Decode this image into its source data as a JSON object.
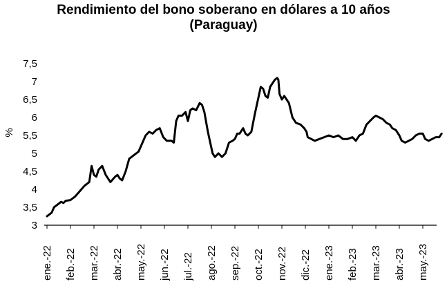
{
  "chart_data": {
    "type": "line",
    "title_line1": "Rendimiento del bono soberano en dólares a 10 años",
    "title_line2": "(Paraguay)",
    "xlabel": "",
    "ylabel": "%",
    "ylim": [
      3,
      7.5
    ],
    "yticks": [
      "3",
      "3,5",
      "4",
      "4,5",
      "5",
      "5,5",
      "6",
      "6,5",
      "7",
      "7,5"
    ],
    "xticks": [
      "ene.-22",
      "feb.-22",
      "mar.-22",
      "abr.-22",
      "may.-22",
      "jun.-22",
      "jul.-22",
      "ago.-22",
      "sep.-22",
      "oct.-22",
      "nov.-22",
      "dic.-22",
      "ene.-23",
      "feb.-23",
      "mar.-23",
      "abr.-23",
      "may.-23"
    ],
    "line_color": "#000000",
    "grid": false,
    "series": [
      {
        "values": [
          [
            0.0,
            3.25
          ],
          [
            0.1,
            3.3
          ],
          [
            0.2,
            3.35
          ],
          [
            0.3,
            3.5
          ],
          [
            0.4,
            3.55
          ],
          [
            0.5,
            3.6
          ],
          [
            0.6,
            3.65
          ],
          [
            0.7,
            3.62
          ],
          [
            0.8,
            3.68
          ],
          [
            1.0,
            3.7
          ],
          [
            1.2,
            3.8
          ],
          [
            1.4,
            3.95
          ],
          [
            1.6,
            4.1
          ],
          [
            1.8,
            4.2
          ],
          [
            1.9,
            4.65
          ],
          [
            2.0,
            4.4
          ],
          [
            2.1,
            4.35
          ],
          [
            2.2,
            4.55
          ],
          [
            2.35,
            4.65
          ],
          [
            2.5,
            4.4
          ],
          [
            2.7,
            4.2
          ],
          [
            2.9,
            4.35
          ],
          [
            3.0,
            4.4
          ],
          [
            3.1,
            4.3
          ],
          [
            3.2,
            4.25
          ],
          [
            3.35,
            4.5
          ],
          [
            3.5,
            4.85
          ],
          [
            3.7,
            4.95
          ],
          [
            3.9,
            5.05
          ],
          [
            4.0,
            5.2
          ],
          [
            4.2,
            5.5
          ],
          [
            4.35,
            5.6
          ],
          [
            4.5,
            5.55
          ],
          [
            4.65,
            5.65
          ],
          [
            4.8,
            5.7
          ],
          [
            4.95,
            5.45
          ],
          [
            5.1,
            5.35
          ],
          [
            5.3,
            5.35
          ],
          [
            5.4,
            5.3
          ],
          [
            5.5,
            5.9
          ],
          [
            5.6,
            6.05
          ],
          [
            5.75,
            6.05
          ],
          [
            5.9,
            6.15
          ],
          [
            6.0,
            5.9
          ],
          [
            6.1,
            6.2
          ],
          [
            6.2,
            6.25
          ],
          [
            6.35,
            6.2
          ],
          [
            6.5,
            6.4
          ],
          [
            6.6,
            6.35
          ],
          [
            6.7,
            6.15
          ],
          [
            6.85,
            5.6
          ],
          [
            6.95,
            5.3
          ],
          [
            7.05,
            5.0
          ],
          [
            7.15,
            4.9
          ],
          [
            7.3,
            5.0
          ],
          [
            7.45,
            4.9
          ],
          [
            7.6,
            5.0
          ],
          [
            7.75,
            5.3
          ],
          [
            7.9,
            5.35
          ],
          [
            8.0,
            5.4
          ],
          [
            8.1,
            5.55
          ],
          [
            8.2,
            5.55
          ],
          [
            8.35,
            5.7
          ],
          [
            8.45,
            5.55
          ],
          [
            8.55,
            5.5
          ],
          [
            8.7,
            5.6
          ],
          [
            8.85,
            6.1
          ],
          [
            9.0,
            6.55
          ],
          [
            9.1,
            6.85
          ],
          [
            9.2,
            6.8
          ],
          [
            9.3,
            6.6
          ],
          [
            9.4,
            6.55
          ],
          [
            9.5,
            6.85
          ],
          [
            9.6,
            6.95
          ],
          [
            9.7,
            7.05
          ],
          [
            9.8,
            7.1
          ],
          [
            9.85,
            7.05
          ],
          [
            9.9,
            6.65
          ],
          [
            10.0,
            6.5
          ],
          [
            10.1,
            6.6
          ],
          [
            10.2,
            6.5
          ],
          [
            10.3,
            6.4
          ],
          [
            10.45,
            6.0
          ],
          [
            10.6,
            5.85
          ],
          [
            10.8,
            5.8
          ],
          [
            10.95,
            5.7
          ],
          [
            11.05,
            5.6
          ],
          [
            11.1,
            5.45
          ],
          [
            11.25,
            5.4
          ],
          [
            11.4,
            5.35
          ],
          [
            11.6,
            5.4
          ],
          [
            11.8,
            5.45
          ],
          [
            12.0,
            5.5
          ],
          [
            12.2,
            5.45
          ],
          [
            12.4,
            5.5
          ],
          [
            12.6,
            5.4
          ],
          [
            12.8,
            5.4
          ],
          [
            13.0,
            5.45
          ],
          [
            13.15,
            5.35
          ],
          [
            13.3,
            5.5
          ],
          [
            13.45,
            5.55
          ],
          [
            13.6,
            5.8
          ],
          [
            13.75,
            5.9
          ],
          [
            13.9,
            6.0
          ],
          [
            14.0,
            6.05
          ],
          [
            14.15,
            6.0
          ],
          [
            14.3,
            5.95
          ],
          [
            14.45,
            5.85
          ],
          [
            14.6,
            5.8
          ],
          [
            14.7,
            5.7
          ],
          [
            14.85,
            5.65
          ],
          [
            15.0,
            5.5
          ],
          [
            15.1,
            5.35
          ],
          [
            15.25,
            5.3
          ],
          [
            15.4,
            5.35
          ],
          [
            15.55,
            5.4
          ],
          [
            15.7,
            5.5
          ],
          [
            15.85,
            5.55
          ],
          [
            16.0,
            5.55
          ],
          [
            16.1,
            5.4
          ],
          [
            16.25,
            5.35
          ],
          [
            16.4,
            5.4
          ],
          [
            16.55,
            5.45
          ],
          [
            16.7,
            5.45
          ],
          [
            16.8,
            5.55
          ]
        ]
      }
    ]
  }
}
